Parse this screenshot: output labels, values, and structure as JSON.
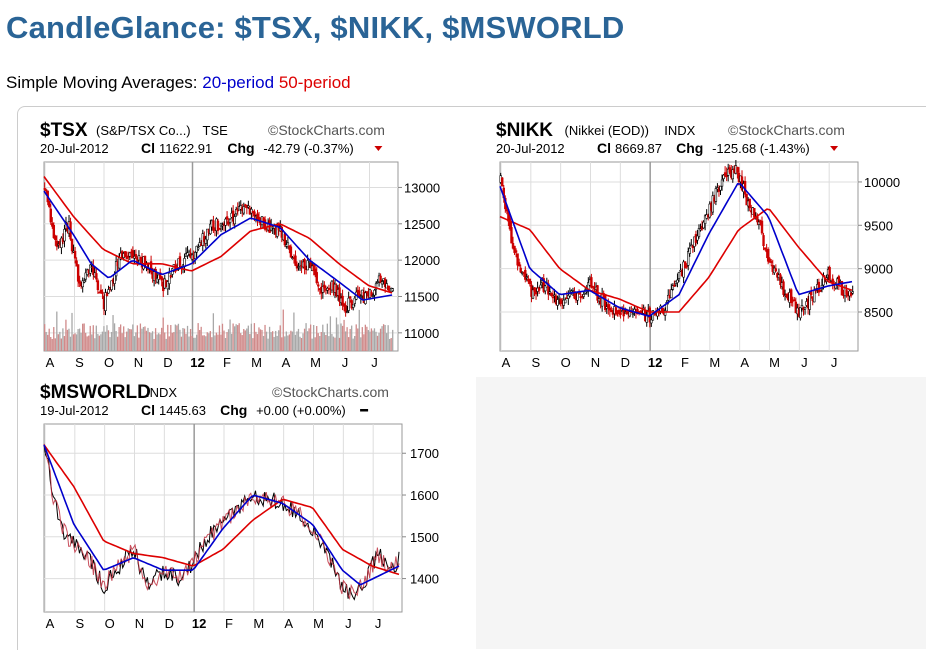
{
  "page": {
    "title": "CandleGlance: $TSX, $NIKK, $MSWORLD",
    "subtitle_prefix": "Simple Moving Averages:",
    "sma_short_label": "20-period",
    "sma_long_label": "50-period",
    "colors": {
      "title": "#2a6496",
      "sma_short": "#0000cc",
      "sma_long": "#dd0000",
      "up": "#000000",
      "down": "#cc0000"
    }
  },
  "chart_data": [
    {
      "type": "candlestick",
      "symbol": "$TSX",
      "name": "(S&P/TSX Co...)",
      "exchange": "TSE",
      "watermark": "StockCharts.com",
      "date": "20-Jul-2012",
      "close_label": "Cl",
      "close": "11622.91",
      "change_label": "Chg",
      "change": "-42.79 (-0.37%)",
      "direction": "down",
      "x_labels": [
        "A",
        "S",
        "O",
        "N",
        "D",
        "12",
        "F",
        "M",
        "A",
        "M",
        "J",
        "J"
      ],
      "y_ticks": [
        11000,
        11500,
        12000,
        12500,
        13000
      ],
      "ylim": [
        10750,
        13350
      ],
      "volume": true,
      "anchors": [
        [
          0,
          13000
        ],
        [
          0.4,
          12150
        ],
        [
          0.8,
          12500
        ],
        [
          1.2,
          11600
        ],
        [
          1.6,
          11900
        ],
        [
          2.0,
          11400
        ],
        [
          2.5,
          12000
        ],
        [
          3.0,
          12100
        ],
        [
          3.5,
          11900
        ],
        [
          4.0,
          11650
        ],
        [
          4.5,
          11950
        ],
        [
          5.0,
          12050
        ],
        [
          5.6,
          12450
        ],
        [
          6.2,
          12550
        ],
        [
          6.8,
          12720
        ],
        [
          7.5,
          12480
        ],
        [
          8.0,
          12400
        ],
        [
          8.5,
          11950
        ],
        [
          9.0,
          11900
        ],
        [
          9.4,
          11600
        ],
        [
          9.8,
          11650
        ],
        [
          10.2,
          11350
        ],
        [
          10.6,
          11500
        ],
        [
          11.0,
          11500
        ],
        [
          11.4,
          11750
        ],
        [
          11.8,
          11620
        ]
      ],
      "sma20": [
        [
          0,
          12950
        ],
        [
          1.0,
          12350
        ],
        [
          1.6,
          11950
        ],
        [
          2.2,
          11750
        ],
        [
          3.0,
          12000
        ],
        [
          4.0,
          11800
        ],
        [
          5.0,
          11950
        ],
        [
          6.0,
          12350
        ],
        [
          7.0,
          12580
        ],
        [
          8.0,
          12450
        ],
        [
          9.0,
          12000
        ],
        [
          10.0,
          11700
        ],
        [
          10.8,
          11450
        ],
        [
          11.8,
          11520
        ]
      ],
      "sma50": [
        [
          0,
          13150
        ],
        [
          1.0,
          12600
        ],
        [
          2.0,
          12150
        ],
        [
          3.0,
          11950
        ],
        [
          4.0,
          11950
        ],
        [
          5.0,
          11850
        ],
        [
          6.0,
          12050
        ],
        [
          7.0,
          12400
        ],
        [
          8.0,
          12500
        ],
        [
          9.0,
          12300
        ],
        [
          10.0,
          11950
        ],
        [
          11.0,
          11650
        ],
        [
          11.8,
          11550
        ]
      ]
    },
    {
      "type": "candlestick",
      "symbol": "$NIKK",
      "name": "(Nikkei (EOD))",
      "exchange": "INDX",
      "watermark": "StockCharts.com",
      "date": "20-Jul-2012",
      "close_label": "Cl",
      "close": "8669.87",
      "change_label": "Chg",
      "change": "-125.68 (-1.43%)",
      "direction": "down",
      "x_labels": [
        "A",
        "S",
        "O",
        "N",
        "D",
        "12",
        "F",
        "M",
        "A",
        "M",
        "J",
        "J"
      ],
      "y_ticks": [
        8500,
        9000,
        9500,
        10000
      ],
      "ylim": [
        8050,
        10230
      ],
      "volume": false,
      "anchors": [
        [
          0,
          10000
        ],
        [
          0.3,
          9450
        ],
        [
          0.6,
          9050
        ],
        [
          1.0,
          8750
        ],
        [
          1.5,
          8800
        ],
        [
          2.0,
          8600
        ],
        [
          2.5,
          8700
        ],
        [
          3.0,
          8800
        ],
        [
          3.5,
          8600
        ],
        [
          4.0,
          8450
        ],
        [
          4.5,
          8500
        ],
        [
          5.0,
          8450
        ],
        [
          5.5,
          8550
        ],
        [
          6.0,
          8900
        ],
        [
          6.5,
          9300
        ],
        [
          7.0,
          9700
        ],
        [
          7.5,
          10050
        ],
        [
          7.9,
          10150
        ],
        [
          8.3,
          9750
        ],
        [
          8.7,
          9500
        ],
        [
          9.0,
          9050
        ],
        [
          9.5,
          8750
        ],
        [
          10.0,
          8500
        ],
        [
          10.5,
          8700
        ],
        [
          11.0,
          8950
        ],
        [
          11.3,
          8800
        ],
        [
          11.8,
          8670
        ]
      ],
      "sma20": [
        [
          0,
          9950
        ],
        [
          1.0,
          9000
        ],
        [
          2.0,
          8700
        ],
        [
          3.0,
          8750
        ],
        [
          4.0,
          8550
        ],
        [
          5.0,
          8450
        ],
        [
          6.0,
          8700
        ],
        [
          7.0,
          9400
        ],
        [
          8.0,
          10000
        ],
        [
          9.0,
          9600
        ],
        [
          10.0,
          8700
        ],
        [
          11.0,
          8800
        ],
        [
          11.8,
          8850
        ]
      ],
      "sma50": [
        [
          0,
          9600
        ],
        [
          1.0,
          9450
        ],
        [
          2.0,
          9000
        ],
        [
          3.0,
          8750
        ],
        [
          4.0,
          8650
        ],
        [
          5.0,
          8500
        ],
        [
          6.0,
          8500
        ],
        [
          7.0,
          8900
        ],
        [
          8.0,
          9450
        ],
        [
          9.0,
          9700
        ],
        [
          10.0,
          9250
        ],
        [
          11.0,
          8850
        ],
        [
          11.8,
          8750
        ]
      ]
    },
    {
      "type": "line",
      "symbol": "$MSWORLD",
      "name": "",
      "exchange": "INDX",
      "watermark": "StockCharts.com",
      "date": "19-Jul-2012",
      "close_label": "Cl",
      "close": "1445.63",
      "change_label": "Chg",
      "change": "+0.00 (+0.00%)",
      "direction": "flat",
      "x_labels": [
        "A",
        "S",
        "O",
        "N",
        "D",
        "12",
        "F",
        "M",
        "A",
        "M",
        "J",
        "J"
      ],
      "y_ticks": [
        1400,
        1500,
        1600,
        1700
      ],
      "ylim": [
        1320,
        1770
      ],
      "volume": false,
      "anchors": [
        [
          0,
          1740
        ],
        [
          0.3,
          1600
        ],
        [
          0.6,
          1520
        ],
        [
          1.0,
          1480
        ],
        [
          1.5,
          1450
        ],
        [
          2.0,
          1380
        ],
        [
          2.4,
          1420
        ],
        [
          3.0,
          1470
        ],
        [
          3.5,
          1380
        ],
        [
          4.0,
          1420
        ],
        [
          4.5,
          1400
        ],
        [
          5.0,
          1440
        ],
        [
          5.5,
          1500
        ],
        [
          6.0,
          1530
        ],
        [
          6.5,
          1570
        ],
        [
          7.0,
          1600
        ],
        [
          7.5,
          1590
        ],
        [
          8.0,
          1580
        ],
        [
          8.5,
          1560
        ],
        [
          9.0,
          1520
        ],
        [
          9.5,
          1460
        ],
        [
          10.0,
          1380
        ],
        [
          10.4,
          1360
        ],
        [
          10.8,
          1400
        ],
        [
          11.2,
          1460
        ],
        [
          11.6,
          1420
        ],
        [
          11.9,
          1445
        ]
      ],
      "sma20": [
        [
          0,
          1720
        ],
        [
          1.0,
          1530
        ],
        [
          2.0,
          1420
        ],
        [
          3.0,
          1450
        ],
        [
          4.0,
          1420
        ],
        [
          5.0,
          1420
        ],
        [
          6.0,
          1520
        ],
        [
          7.0,
          1600
        ],
        [
          8.0,
          1580
        ],
        [
          9.0,
          1530
        ],
        [
          10.0,
          1420
        ],
        [
          10.6,
          1385
        ],
        [
          11.9,
          1430
        ]
      ],
      "sma50": [
        [
          0,
          1720
        ],
        [
          1.0,
          1620
        ],
        [
          2.0,
          1490
        ],
        [
          3.0,
          1460
        ],
        [
          4.0,
          1450
        ],
        [
          5.0,
          1430
        ],
        [
          6.0,
          1470
        ],
        [
          7.0,
          1540
        ],
        [
          8.0,
          1590
        ],
        [
          9.0,
          1570
        ],
        [
          10.0,
          1470
        ],
        [
          11.0,
          1430
        ],
        [
          11.9,
          1410
        ]
      ]
    }
  ]
}
